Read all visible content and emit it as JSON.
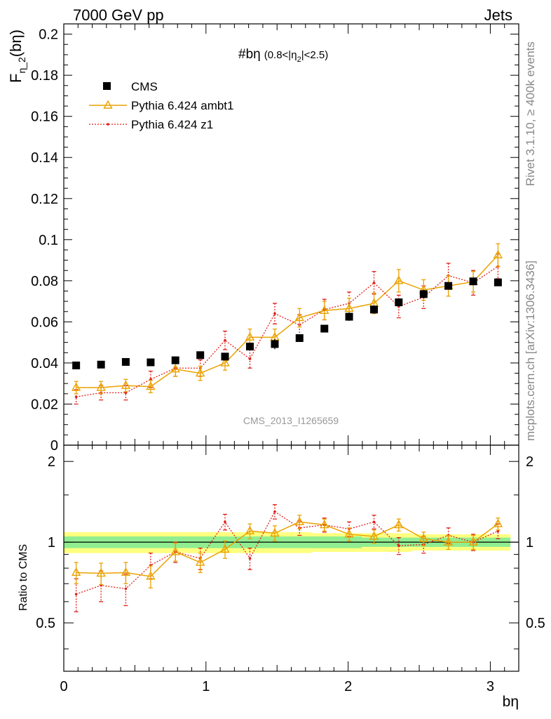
{
  "header": {
    "left": "7000 GeV pp",
    "right": "Jets"
  },
  "side": {
    "rivet": "Rivet 3.1.10, ≥ 400k events",
    "mcplots": "mcplots.cern.ch [arXiv:1306.3436]"
  },
  "analysis_label": "CMS_2013_I1265659",
  "plot_title_main": "#bη",
  "plot_title_sub": "(0.8<|η",
  "plot_title_sub_index": "2",
  "plot_title_sub_end": "|<2.5)",
  "colors": {
    "cms": "#000000",
    "ambt1": "#eaa200",
    "z1": "#e0201b",
    "band_inner": "#90ee90",
    "band_outer": "#ffff80"
  },
  "chart_data": [
    {
      "type": "scatter",
      "panel": "main",
      "ylabel": "F",
      "ylabel_sub": "η_2",
      "ylabel_paren": "(bη)",
      "xlim": [
        0,
        3.2
      ],
      "ylim": [
        0,
        0.205
      ],
      "yticks": [
        "0",
        "0.02",
        "0.04",
        "0.06",
        "0.08",
        "0.1",
        "0.12",
        "0.14",
        "0.16",
        "0.18",
        "0.2"
      ],
      "x": [
        0.087,
        0.262,
        0.436,
        0.611,
        0.785,
        0.96,
        1.134,
        1.309,
        1.484,
        1.658,
        1.833,
        2.007,
        2.182,
        2.356,
        2.531,
        2.705,
        2.88,
        3.054
      ],
      "series": [
        {
          "name": "CMS",
          "values": [
            0.0388,
            0.0392,
            0.0405,
            0.0403,
            0.0413,
            0.0438,
            0.0431,
            0.048,
            0.0492,
            0.0521,
            0.0567,
            0.0625,
            0.066,
            0.0695,
            0.0735,
            0.0775,
            0.0797,
            0.0792
          ],
          "errors": [
            0.0005,
            0.0005,
            0.0005,
            0.0005,
            0.0005,
            0.0006,
            0.0006,
            0.0007,
            0.0025,
            0.0007,
            0.0007,
            0.002,
            0.002,
            0.0015,
            0.002,
            0.0015,
            0.001,
            0.001
          ]
        },
        {
          "name": "Pythia 6.424 ambt1",
          "values": [
            0.028,
            0.028,
            0.029,
            0.0285,
            0.037,
            0.035,
            0.04,
            0.0525,
            0.0525,
            0.062,
            0.0655,
            0.0665,
            0.069,
            0.08,
            0.0755,
            0.0775,
            0.0795,
            0.0925
          ],
          "errors": [
            0.003,
            0.003,
            0.003,
            0.003,
            0.0035,
            0.0035,
            0.0035,
            0.004,
            0.004,
            0.0045,
            0.0045,
            0.005,
            0.005,
            0.0055,
            0.005,
            0.005,
            0.005,
            0.0055
          ]
        },
        {
          "name": "Pythia 6.424 z1",
          "values": [
            0.0235,
            0.0255,
            0.0255,
            0.032,
            0.0375,
            0.0375,
            0.051,
            0.042,
            0.064,
            0.0585,
            0.066,
            0.069,
            0.079,
            0.0675,
            0.072,
            0.0825,
            0.079,
            0.087
          ],
          "errors": [
            0.0035,
            0.0035,
            0.0035,
            0.004,
            0.004,
            0.004,
            0.0045,
            0.0045,
            0.005,
            0.005,
            0.005,
            0.0055,
            0.0055,
            0.0055,
            0.0055,
            0.006,
            0.006,
            0.006
          ]
        }
      ]
    },
    {
      "type": "scatter",
      "panel": "ratio",
      "ylabel": "Ratio to CMS",
      "xlabel": "bη",
      "xlim": [
        0,
        3.2
      ],
      "ylim": [
        0.33,
        2.3
      ],
      "yscale": "log",
      "yticks": [
        "0.5",
        "1",
        "2"
      ],
      "xticks": [
        "0",
        "1",
        "2",
        "3"
      ],
      "x": [
        0.087,
        0.262,
        0.436,
        0.611,
        0.785,
        0.96,
        1.134,
        1.309,
        1.484,
        1.658,
        1.833,
        2.007,
        2.182,
        2.356,
        2.531,
        2.705,
        2.88,
        3.054
      ],
      "band_inner": [
        0.05,
        0.05,
        0.05,
        0.05,
        0.05,
        0.05,
        0.05,
        0.05,
        0.05,
        0.05,
        0.05,
        0.05,
        0.04,
        0.04,
        0.04,
        0.04,
        0.04,
        0.04
      ],
      "band_outer": [
        0.09,
        0.09,
        0.09,
        0.09,
        0.09,
        0.09,
        0.09,
        0.09,
        0.09,
        0.09,
        0.08,
        0.08,
        0.08,
        0.08,
        0.07,
        0.07,
        0.07,
        0.07
      ],
      "series": [
        {
          "name": "Pythia 6.424 ambt1",
          "values": [
            0.77,
            0.765,
            0.77,
            0.745,
            0.92,
            0.84,
            0.94,
            1.1,
            1.08,
            1.19,
            1.16,
            1.07,
            1.05,
            1.16,
            1.03,
            1.0,
            1.0,
            1.17
          ],
          "errors": [
            0.07,
            0.07,
            0.07,
            0.07,
            0.07,
            0.07,
            0.07,
            0.07,
            0.07,
            0.07,
            0.06,
            0.06,
            0.06,
            0.06,
            0.06,
            0.06,
            0.06,
            0.06
          ]
        },
        {
          "name": "Pythia 6.424 z1",
          "values": [
            0.64,
            0.69,
            0.67,
            0.82,
            0.92,
            0.87,
            1.19,
            0.87,
            1.3,
            1.13,
            1.16,
            1.12,
            1.19,
            0.97,
            0.98,
            1.06,
            1.0,
            1.1
          ],
          "errors": [
            0.09,
            0.09,
            0.09,
            0.09,
            0.08,
            0.08,
            0.08,
            0.08,
            0.08,
            0.07,
            0.07,
            0.07,
            0.07,
            0.07,
            0.07,
            0.07,
            0.07,
            0.07
          ]
        }
      ]
    }
  ]
}
